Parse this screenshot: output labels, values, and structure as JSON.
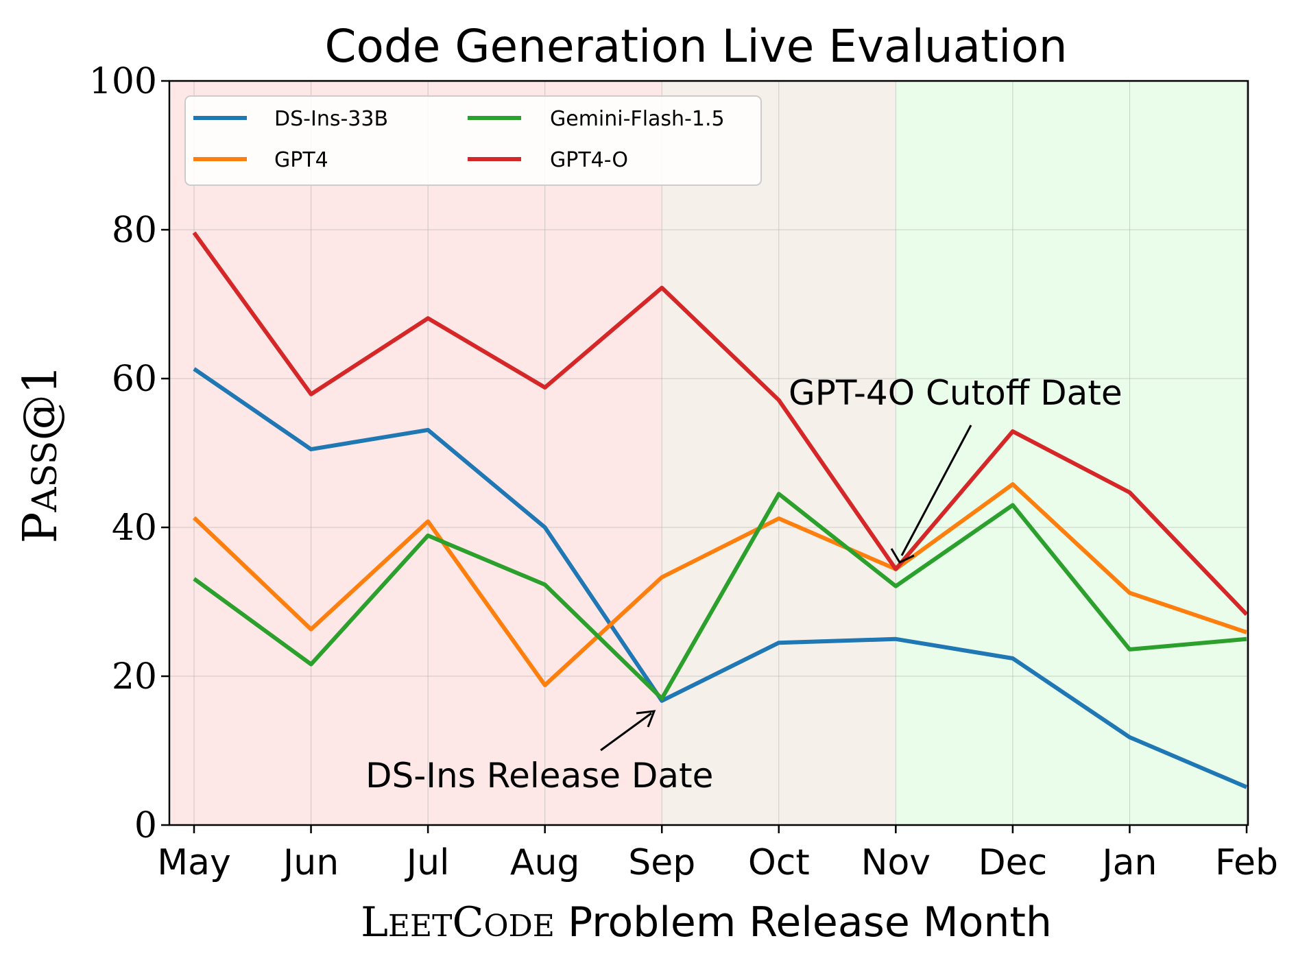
{
  "chart_data": {
    "type": "line",
    "title": "Code Generation Live Evaluation",
    "xlabel": {
      "prefix_cap": "L",
      "prefix_rest": "EET",
      "mid_cap": "C",
      "mid_rest": "ODE",
      "suffix": " Problem Release Month"
    },
    "ylabel": {
      "cap": "P",
      "rest": "ASS",
      "tail": "@1"
    },
    "categories": [
      "May",
      "Jun",
      "Jul",
      "Aug",
      "Sep",
      "Oct",
      "Nov",
      "Dec",
      "Jan",
      "Feb"
    ],
    "ylim": [
      0,
      100
    ],
    "yticks": [
      "0",
      "20",
      "40",
      "60",
      "80",
      "100"
    ],
    "grid": true,
    "legend_position": "top-left",
    "regions": [
      {
        "from": -0.2,
        "to": 4,
        "color": "#fde7e7"
      },
      {
        "from": 4,
        "to": 6,
        "color": "#f5f1ea"
      },
      {
        "from": 6,
        "to": 9,
        "color": "#eafcea"
      }
    ],
    "series": [
      {
        "name": "DS-Ins-33B",
        "color": "#1f77b4",
        "values": [
          61.3,
          50.5,
          53.1,
          40.0,
          16.7,
          24.5,
          25.0,
          22.4,
          11.8,
          5.1
        ]
      },
      {
        "name": "GPT4",
        "color": "#ff7f0e",
        "values": [
          41.3,
          26.3,
          40.8,
          18.8,
          33.3,
          41.2,
          34.4,
          45.8,
          31.2,
          25.9
        ]
      },
      {
        "name": "Gemini-Flash-1.5",
        "color": "#2ca02c",
        "values": [
          33.1,
          21.6,
          38.9,
          32.3,
          17.0,
          44.5,
          32.1,
          43.0,
          23.6,
          25.0
        ]
      },
      {
        "name": "GPT4-O",
        "color": "#d62728",
        "values": [
          79.6,
          57.9,
          68.1,
          58.8,
          72.2,
          57.1,
          34.4,
          52.9,
          44.7,
          28.3
        ]
      }
    ],
    "annotations": [
      {
        "text": "DS-Ins Release Date",
        "target_x": 4,
        "target_y": 16
      },
      {
        "text": "GPT-4O Cutoff Date",
        "target_x": 6,
        "target_y": 36
      }
    ]
  }
}
